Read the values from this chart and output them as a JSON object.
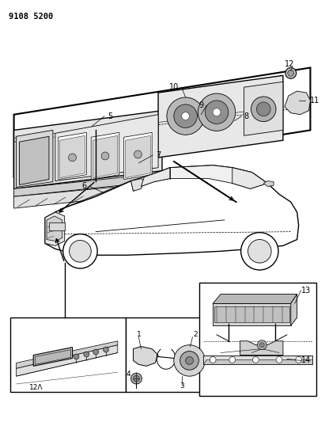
{
  "title_code": "9108 5200",
  "bg": "#ffffff",
  "lc": "#000000",
  "fig_w": 4.11,
  "fig_h": 5.33,
  "dpi": 100
}
